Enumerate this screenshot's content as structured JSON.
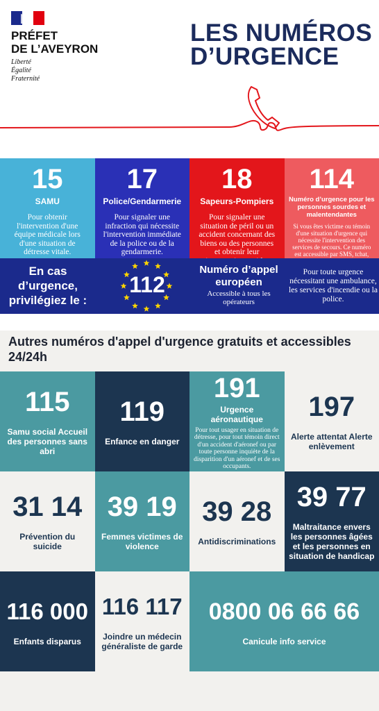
{
  "header": {
    "logo": {
      "line1": "PRÉFET",
      "line2": "DE L’AVEYRON",
      "motto": [
        "Liberté",
        "Égalité",
        "Fraternité"
      ]
    },
    "title": [
      "LES NUMÉROS",
      "D’URGENCE"
    ]
  },
  "main_numbers": [
    {
      "number": "15",
      "name": "SAMU",
      "description": "Pour obtenir l'intervention d'une équipe médicale lors d'une situation de détresse vitale."
    },
    {
      "number": "17",
      "name": "Police/Gendarmerie",
      "description": "Pour signaler une infraction qui nécessite l'intervention immédiate de la police ou de la gendarmerie."
    },
    {
      "number": "18",
      "name": "Sapeurs-Pompiers",
      "description": "Pour signaler une situation de péril ou un accident concernant des biens ou des personnes et obtenir leur intervention rapide."
    },
    {
      "number": "114",
      "name": "Numéro d’urgence pour les personnes sourdes et malentendantes",
      "description": "Si vous êtes victime ou témoin d'une situation d'urgence qui nécessite l'intervention des services de secours. Ce numéro est accessible par SMS, tchat, visio et fax."
    }
  ],
  "european": {
    "intro": "En cas d’urgence, privilégiez le :",
    "number": "112",
    "name": "Numéro d’appel européen",
    "note": "Accessible à tous les opérateurs",
    "description": "Pour toute urgence nécessitant une ambulance, les services d'incendie ou la police."
  },
  "other": {
    "title": "Autres numéros d'appel d'urgence gratuits et accessibles 24/24h",
    "numbers": [
      {
        "number": "115",
        "name": "Samu social Accueil des personnes sans abri"
      },
      {
        "number": "119",
        "name": "Enfance en danger"
      },
      {
        "number": "191",
        "name": "Urgence aéronautique",
        "description": "Pour tout usager en situation de détresse, pour tout témoin direct d'un accident d'aéronef ou par toute personne inquiète de la disparition d'un aéronef et de ses occupants."
      },
      {
        "number": "197",
        "name": "Alerte attentat Alerte enlèvement"
      },
      {
        "number": "31 14",
        "name": "Prévention du suicide"
      },
      {
        "number": "39 19",
        "name": "Femmes victimes de violence"
      },
      {
        "number": "39 28",
        "name": "Antidiscriminations"
      },
      {
        "number": "39 77",
        "name": "Maltraitance envers les personnes âgées et les personnes en situation de handicap"
      },
      {
        "number": "116 000",
        "name": "Enfants disparus"
      },
      {
        "number": "116 117",
        "name": "Joindre un médecin généraliste de garde"
      },
      {
        "number": "0800 06 66 66",
        "name": "Canicule info service"
      }
    ]
  }
}
